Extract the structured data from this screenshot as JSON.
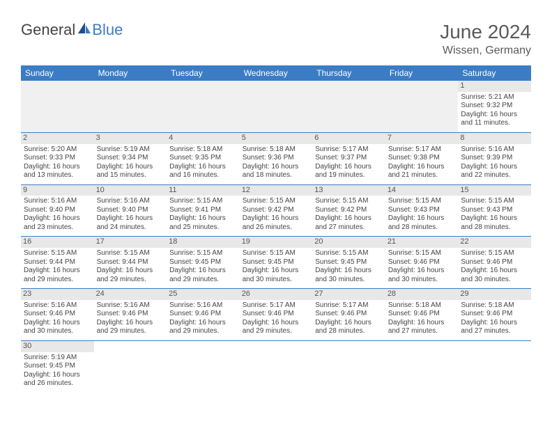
{
  "brand": {
    "part1": "General",
    "part2": "Blue"
  },
  "title": "June 2024",
  "location": "Wissen, Germany",
  "colors": {
    "header_bg": "#3b7cc4",
    "header_fg": "#ffffff",
    "daynum_bg": "#e8e8e8",
    "row_border": "#3b7cc4",
    "text": "#444444",
    "title_text": "#5a5a5a",
    "page_bg": "#ffffff"
  },
  "day_names": [
    "Sunday",
    "Monday",
    "Tuesday",
    "Wednesday",
    "Thursday",
    "Friday",
    "Saturday"
  ],
  "weeks": [
    [
      null,
      null,
      null,
      null,
      null,
      null,
      {
        "n": "1",
        "sunrise": "Sunrise: 5:21 AM",
        "sunset": "Sunset: 9:32 PM",
        "d1": "Daylight: 16 hours",
        "d2": "and 11 minutes."
      }
    ],
    [
      {
        "n": "2",
        "sunrise": "Sunrise: 5:20 AM",
        "sunset": "Sunset: 9:33 PM",
        "d1": "Daylight: 16 hours",
        "d2": "and 13 minutes."
      },
      {
        "n": "3",
        "sunrise": "Sunrise: 5:19 AM",
        "sunset": "Sunset: 9:34 PM",
        "d1": "Daylight: 16 hours",
        "d2": "and 15 minutes."
      },
      {
        "n": "4",
        "sunrise": "Sunrise: 5:18 AM",
        "sunset": "Sunset: 9:35 PM",
        "d1": "Daylight: 16 hours",
        "d2": "and 16 minutes."
      },
      {
        "n": "5",
        "sunrise": "Sunrise: 5:18 AM",
        "sunset": "Sunset: 9:36 PM",
        "d1": "Daylight: 16 hours",
        "d2": "and 18 minutes."
      },
      {
        "n": "6",
        "sunrise": "Sunrise: 5:17 AM",
        "sunset": "Sunset: 9:37 PM",
        "d1": "Daylight: 16 hours",
        "d2": "and 19 minutes."
      },
      {
        "n": "7",
        "sunrise": "Sunrise: 5:17 AM",
        "sunset": "Sunset: 9:38 PM",
        "d1": "Daylight: 16 hours",
        "d2": "and 21 minutes."
      },
      {
        "n": "8",
        "sunrise": "Sunrise: 5:16 AM",
        "sunset": "Sunset: 9:39 PM",
        "d1": "Daylight: 16 hours",
        "d2": "and 22 minutes."
      }
    ],
    [
      {
        "n": "9",
        "sunrise": "Sunrise: 5:16 AM",
        "sunset": "Sunset: 9:40 PM",
        "d1": "Daylight: 16 hours",
        "d2": "and 23 minutes."
      },
      {
        "n": "10",
        "sunrise": "Sunrise: 5:16 AM",
        "sunset": "Sunset: 9:40 PM",
        "d1": "Daylight: 16 hours",
        "d2": "and 24 minutes."
      },
      {
        "n": "11",
        "sunrise": "Sunrise: 5:15 AM",
        "sunset": "Sunset: 9:41 PM",
        "d1": "Daylight: 16 hours",
        "d2": "and 25 minutes."
      },
      {
        "n": "12",
        "sunrise": "Sunrise: 5:15 AM",
        "sunset": "Sunset: 9:42 PM",
        "d1": "Daylight: 16 hours",
        "d2": "and 26 minutes."
      },
      {
        "n": "13",
        "sunrise": "Sunrise: 5:15 AM",
        "sunset": "Sunset: 9:42 PM",
        "d1": "Daylight: 16 hours",
        "d2": "and 27 minutes."
      },
      {
        "n": "14",
        "sunrise": "Sunrise: 5:15 AM",
        "sunset": "Sunset: 9:43 PM",
        "d1": "Daylight: 16 hours",
        "d2": "and 28 minutes."
      },
      {
        "n": "15",
        "sunrise": "Sunrise: 5:15 AM",
        "sunset": "Sunset: 9:43 PM",
        "d1": "Daylight: 16 hours",
        "d2": "and 28 minutes."
      }
    ],
    [
      {
        "n": "16",
        "sunrise": "Sunrise: 5:15 AM",
        "sunset": "Sunset: 9:44 PM",
        "d1": "Daylight: 16 hours",
        "d2": "and 29 minutes."
      },
      {
        "n": "17",
        "sunrise": "Sunrise: 5:15 AM",
        "sunset": "Sunset: 9:44 PM",
        "d1": "Daylight: 16 hours",
        "d2": "and 29 minutes."
      },
      {
        "n": "18",
        "sunrise": "Sunrise: 5:15 AM",
        "sunset": "Sunset: 9:45 PM",
        "d1": "Daylight: 16 hours",
        "d2": "and 29 minutes."
      },
      {
        "n": "19",
        "sunrise": "Sunrise: 5:15 AM",
        "sunset": "Sunset: 9:45 PM",
        "d1": "Daylight: 16 hours",
        "d2": "and 30 minutes."
      },
      {
        "n": "20",
        "sunrise": "Sunrise: 5:15 AM",
        "sunset": "Sunset: 9:45 PM",
        "d1": "Daylight: 16 hours",
        "d2": "and 30 minutes."
      },
      {
        "n": "21",
        "sunrise": "Sunrise: 5:15 AM",
        "sunset": "Sunset: 9:46 PM",
        "d1": "Daylight: 16 hours",
        "d2": "and 30 minutes."
      },
      {
        "n": "22",
        "sunrise": "Sunrise: 5:15 AM",
        "sunset": "Sunset: 9:46 PM",
        "d1": "Daylight: 16 hours",
        "d2": "and 30 minutes."
      }
    ],
    [
      {
        "n": "23",
        "sunrise": "Sunrise: 5:16 AM",
        "sunset": "Sunset: 9:46 PM",
        "d1": "Daylight: 16 hours",
        "d2": "and 30 minutes."
      },
      {
        "n": "24",
        "sunrise": "Sunrise: 5:16 AM",
        "sunset": "Sunset: 9:46 PM",
        "d1": "Daylight: 16 hours",
        "d2": "and 29 minutes."
      },
      {
        "n": "25",
        "sunrise": "Sunrise: 5:16 AM",
        "sunset": "Sunset: 9:46 PM",
        "d1": "Daylight: 16 hours",
        "d2": "and 29 minutes."
      },
      {
        "n": "26",
        "sunrise": "Sunrise: 5:17 AM",
        "sunset": "Sunset: 9:46 PM",
        "d1": "Daylight: 16 hours",
        "d2": "and 29 minutes."
      },
      {
        "n": "27",
        "sunrise": "Sunrise: 5:17 AM",
        "sunset": "Sunset: 9:46 PM",
        "d1": "Daylight: 16 hours",
        "d2": "and 28 minutes."
      },
      {
        "n": "28",
        "sunrise": "Sunrise: 5:18 AM",
        "sunset": "Sunset: 9:46 PM",
        "d1": "Daylight: 16 hours",
        "d2": "and 27 minutes."
      },
      {
        "n": "29",
        "sunrise": "Sunrise: 5:18 AM",
        "sunset": "Sunset: 9:46 PM",
        "d1": "Daylight: 16 hours",
        "d2": "and 27 minutes."
      }
    ],
    [
      {
        "n": "30",
        "sunrise": "Sunrise: 5:19 AM",
        "sunset": "Sunset: 9:45 PM",
        "d1": "Daylight: 16 hours",
        "d2": "and 26 minutes."
      },
      null,
      null,
      null,
      null,
      null,
      null
    ]
  ]
}
